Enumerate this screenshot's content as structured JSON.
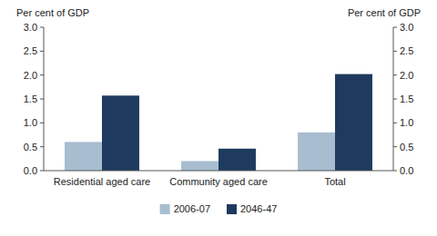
{
  "chart_data": {
    "type": "bar",
    "categories": [
      "Residential aged care",
      "Community aged care",
      "Total"
    ],
    "series": [
      {
        "name": "2006-07",
        "color": "#a8bdd0",
        "values": [
          0.6,
          0.2,
          0.8
        ]
      },
      {
        "name": "2046-47",
        "color": "#1e3a5f",
        "values": [
          1.57,
          0.46,
          2.02
        ]
      }
    ],
    "ylabel": "Per cent of GDP",
    "y2label": "Per cent of GDP",
    "ylim": [
      0.0,
      3.0
    ],
    "yticks": [
      {
        "value": 0,
        "label": "0.0"
      },
      0.5,
      {
        "value": 1,
        "label": "1.0"
      },
      1.5,
      {
        "value": 2,
        "label": "2.0"
      },
      2.5,
      {
        "value": 3,
        "label": "3.0"
      }
    ],
    "y2lim": [
      0.0,
      3.0
    ],
    "y2ticks": [
      {
        "value": 0,
        "label": "0.0"
      },
      0.5,
      {
        "value": 1,
        "label": "1.0"
      },
      1.5,
      {
        "value": 2,
        "label": "2.0"
      },
      2.5,
      {
        "value": 3,
        "label": "3.0"
      }
    ],
    "grid": false,
    "legend": "bottom"
  }
}
